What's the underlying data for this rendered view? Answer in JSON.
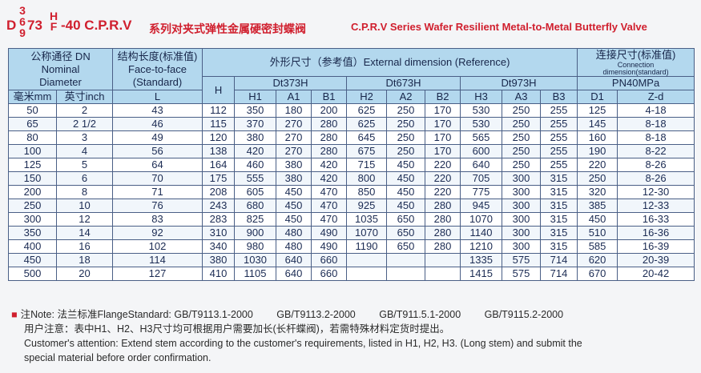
{
  "title": {
    "prefix_d": "D",
    "digit_stack": [
      "3",
      "6",
      "9"
    ],
    "mid": "73",
    "hf_stack": [
      "H",
      "F"
    ],
    "suffix": "-40 C.P.R.V",
    "cn": "系列对夹式弹性金属硬密封蝶阀",
    "en": "C.P.R.V Series Wafer Resilient Metal-to-Metal Butterfly Valve"
  },
  "header": {
    "dn_cn": "公称通径 DN",
    "dn_en1": "Nominal",
    "dn_en2": "Diameter",
    "mm": "毫米mm",
    "inch": "英寸inch",
    "ff_cn": "结构长度(标准值)",
    "ff_en1": "Face-to-face",
    "ff_en2": "(Standard)",
    "l": "L",
    "ext": "外形尺寸（参考值）External dimension (Reference)",
    "conn_cn": "连接尺寸(标准值)",
    "conn_en1": "Connection",
    "conn_en2": "dimension(standard)",
    "h": "H",
    "dt373": "Dt373H",
    "dt673": "Dt673H",
    "dt973": "Dt973H",
    "pn": "PN40MPa",
    "h1": "H1",
    "a1": "A1",
    "b1": "B1",
    "h2": "H2",
    "a2": "A2",
    "b2": "B2",
    "h3": "H3",
    "a3": "A3",
    "b3": "B3",
    "d1": "D1",
    "zd": "Z-d"
  },
  "rows": [
    [
      "50",
      "2",
      "43",
      "112",
      "350",
      "180",
      "200",
      "625",
      "250",
      "170",
      "530",
      "250",
      "255",
      "125",
      "4-18"
    ],
    [
      "65",
      "2 1/2",
      "46",
      "115",
      "370",
      "270",
      "280",
      "625",
      "250",
      "170",
      "530",
      "250",
      "255",
      "145",
      "8-18"
    ],
    [
      "80",
      "3",
      "49",
      "120",
      "380",
      "270",
      "280",
      "645",
      "250",
      "170",
      "565",
      "250",
      "255",
      "160",
      "8-18"
    ],
    [
      "100",
      "4",
      "56",
      "138",
      "420",
      "270",
      "280",
      "675",
      "250",
      "170",
      "600",
      "250",
      "255",
      "190",
      "8-22"
    ],
    [
      "125",
      "5",
      "64",
      "164",
      "460",
      "380",
      "420",
      "715",
      "450",
      "220",
      "640",
      "250",
      "255",
      "220",
      "8-26"
    ],
    [
      "150",
      "6",
      "70",
      "175",
      "555",
      "380",
      "420",
      "800",
      "450",
      "220",
      "705",
      "300",
      "315",
      "250",
      "8-26"
    ],
    [
      "200",
      "8",
      "71",
      "208",
      "605",
      "450",
      "470",
      "850",
      "450",
      "220",
      "775",
      "300",
      "315",
      "320",
      "12-30"
    ],
    [
      "250",
      "10",
      "76",
      "243",
      "680",
      "450",
      "470",
      "925",
      "450",
      "280",
      "945",
      "300",
      "315",
      "385",
      "12-33"
    ],
    [
      "300",
      "12",
      "83",
      "283",
      "825",
      "450",
      "470",
      "1035",
      "650",
      "280",
      "1070",
      "300",
      "315",
      "450",
      "16-33"
    ],
    [
      "350",
      "14",
      "92",
      "310",
      "900",
      "480",
      "490",
      "1070",
      "650",
      "280",
      "1140",
      "300",
      "315",
      "510",
      "16-36"
    ],
    [
      "400",
      "16",
      "102",
      "340",
      "980",
      "480",
      "490",
      "1190",
      "650",
      "280",
      "1210",
      "300",
      "315",
      "585",
      "16-39"
    ],
    [
      "450",
      "18",
      "114",
      "380",
      "1030",
      "640",
      "660",
      "",
      "",
      "",
      "1335",
      "575",
      "714",
      "620",
      "20-39"
    ],
    [
      "500",
      "20",
      "127",
      "410",
      "1105",
      "640",
      "660",
      "",
      "",
      "",
      "1415",
      "575",
      "714",
      "670",
      "20-42"
    ]
  ],
  "notes": {
    "note_label": "注Note:",
    "flange_label": "法兰标准FlangeStandard:",
    "std1": "GB/T9113.1-2000",
    "std2": "GB/T9113.2-2000",
    "std3": "GB/T911.5.1-2000",
    "std4": "GB/T9115.2-2000",
    "cn_attention": "用户注意：表中H1、H2、H3尺寸均可根据用户需要加长(长杆蝶阀)，若需特殊材料定货时提出。",
    "en_attention1": "Customer's attention: Extend stem according to the customer's requirements, listed in H1, H2, H3. (Long stem) and submit the",
    "en_attention2": "special material before order confirmation."
  },
  "colors": {
    "title_red": "#d01f2e",
    "header_blue": "#b3d8ee",
    "border": "#4a5f86"
  }
}
